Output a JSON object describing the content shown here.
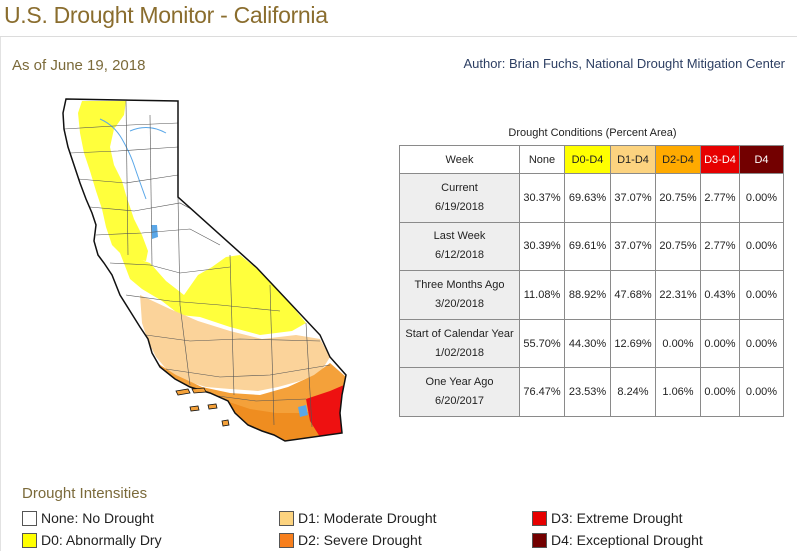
{
  "header": {
    "title": "U.S. Drought Monitor - California",
    "as_of": "As of June 19, 2018",
    "author": "Author: Brian Fuchs, National Drought Mitigation Center"
  },
  "table": {
    "caption": "Drought Conditions (Percent Area)",
    "columns": [
      {
        "label": "Week",
        "color": "#ffffff"
      },
      {
        "label": "None",
        "color": "#ffffff"
      },
      {
        "label": "D0-D4",
        "color": "#ffff00"
      },
      {
        "label": "D1-D4",
        "color": "#fcd37f"
      },
      {
        "label": "D2-D4",
        "color": "#ffaa00"
      },
      {
        "label": "D3-D4",
        "color": "#e60000"
      },
      {
        "label": "D4",
        "color": "#730000"
      }
    ],
    "rows": [
      {
        "period": "Current",
        "date": "6/19/2018",
        "values": [
          "30.37%",
          "69.63%",
          "37.07%",
          "20.75%",
          "2.77%",
          "0.00%"
        ]
      },
      {
        "period": "Last Week",
        "date": "6/12/2018",
        "values": [
          "30.39%",
          "69.61%",
          "37.07%",
          "20.75%",
          "2.77%",
          "0.00%"
        ]
      },
      {
        "period": "Three Months Ago",
        "date": "3/20/2018",
        "values": [
          "11.08%",
          "88.92%",
          "47.68%",
          "22.31%",
          "0.43%",
          "0.00%"
        ]
      },
      {
        "period": "Start of Calendar Year",
        "date": "1/02/2018",
        "values": [
          "55.70%",
          "44.30%",
          "12.69%",
          "0.00%",
          "0.00%",
          "0.00%"
        ]
      },
      {
        "period": "One Year Ago",
        "date": "6/20/2017",
        "values": [
          "76.47%",
          "23.53%",
          "8.24%",
          "1.06%",
          "0.00%",
          "0.00%"
        ]
      }
    ]
  },
  "legend": {
    "title": "Drought Intensities",
    "items": [
      {
        "label": "None: No Drought",
        "color": "#ffffff"
      },
      {
        "label": "D0: Abnormally Dry",
        "color": "#ffff00"
      },
      {
        "label": "D1: Moderate Drought",
        "color": "#fcd37f"
      },
      {
        "label": "D2: Severe Drought",
        "color": "#f77f1d"
      },
      {
        "label": "D3: Extreme Drought",
        "color": "#e60000"
      },
      {
        "label": "D4: Exceptional Drought",
        "color": "#730000"
      }
    ]
  },
  "map": {
    "colors": {
      "none": "#ffffff",
      "d0": "#ffff3c",
      "d1": "#fbd39a",
      "d2": "#f4a13a",
      "d2b": "#ef8d20",
      "d3": "#ee1111",
      "water": "#5aa7e8"
    }
  }
}
